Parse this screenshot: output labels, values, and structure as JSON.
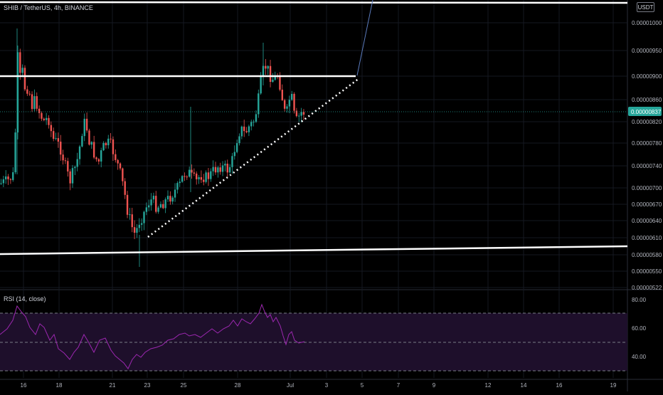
{
  "header": {
    "title": "SHIB / TetherUS, 4h, BINANCE",
    "currency": "USDT"
  },
  "rsi_panel": {
    "title": "RSI (14, close)"
  },
  "colors": {
    "background": "#000000",
    "bull": "#26a69a",
    "bear": "#ef5350",
    "rsi_line": "#9c27b0",
    "rsi_band": "#1e0f2b",
    "axis_text": "#b2b5be",
    "current_price_badge": "#26a69a"
  },
  "chart_data": [
    {
      "type": "candlestick",
      "title": "SHIB / TetherUS, 4h, BINANCE",
      "y_scale": "log",
      "y_ticks": [
        "0.00001000",
        "0.00000950",
        "0.00000900",
        "0.00000860",
        "0.00000820",
        "0.00000780",
        "0.00000740",
        "0.00000700",
        "0.00000670",
        "0.00000640",
        "0.00000610",
        "0.00000580",
        "0.00000550",
        "0.00000522"
      ],
      "x_ticks": [
        "16",
        "18",
        "21",
        "23",
        "25",
        "28",
        "Jul",
        "3",
        "5",
        "7",
        "9",
        "12",
        "14",
        "16",
        "19"
      ],
      "current_price": "0.00000837",
      "grid": true,
      "legend": "none"
    },
    {
      "type": "line",
      "title": "RSI (14, close)",
      "y_ticks": [
        "80.00",
        "60.00",
        "40.00"
      ],
      "bands": [
        70,
        50,
        30
      ],
      "grid": true
    }
  ]
}
